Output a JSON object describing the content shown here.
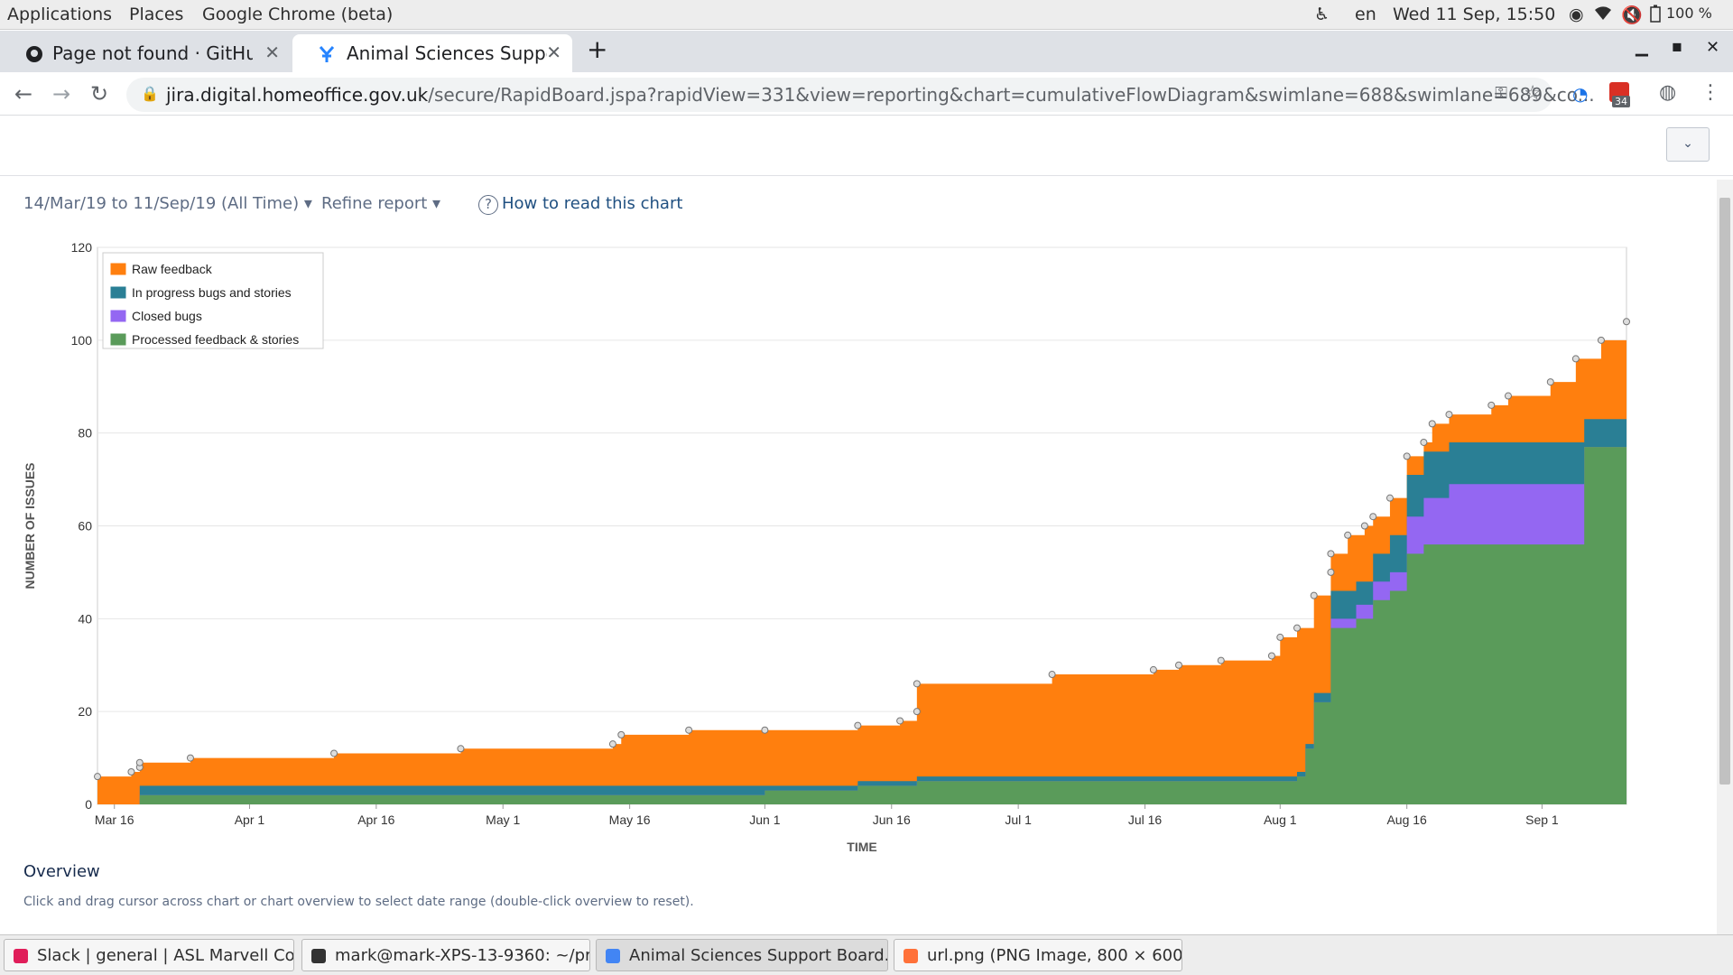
{
  "top_panel": {
    "menus": [
      "Applications",
      "Places",
      "Google Chrome (beta)"
    ],
    "language": "en",
    "clock": "Wed 11 Sep, 15:50",
    "battery": "100 %"
  },
  "tabs": [
    {
      "title": "Page not found · GitHub",
      "active": false,
      "icon": "github-icon"
    },
    {
      "title": "Animal Sciences Support Board",
      "active": true,
      "icon": "jira-icon"
    }
  ],
  "omnibox": {
    "host": "jira.digital.homeoffice.gov.uk",
    "path": "/secure/RapidBoard.jspa?rapidView=331&view=reporting&chart=cumulativeFlowDiagram&swimlane=688&swimlane=689&co..."
  },
  "toolbar": {
    "extension_badge": "34"
  },
  "report": {
    "date_range": "14/Mar/19 to 11/Sep/19 (All Time)",
    "refine": "Refine report",
    "how_to_read": "How to read this chart",
    "overview_title": "Overview",
    "overview_help": "Click and drag cursor across chart or chart overview to select date range (double-click overview to reset)."
  },
  "taskbar": [
    {
      "label": "Slack | general | ASL Marvell Co...",
      "icon": "slack-icon",
      "active": false
    },
    {
      "label": "mark@mark-XPS-13-9360: ~/pr...",
      "icon": "terminal-icon",
      "active": false
    },
    {
      "label": "Animal Sciences Support Board...",
      "icon": "chrome-icon",
      "active": true
    },
    {
      "label": "url.png (PNG Image, 800 × 600...",
      "icon": "firefox-icon",
      "active": false
    }
  ],
  "chart_data": {
    "type": "area",
    "stacked": true,
    "xlabel": "TIME",
    "ylabel": "NUMBER OF ISSUES",
    "ylim": [
      0,
      120
    ],
    "yticks": [
      0,
      20,
      40,
      60,
      80,
      100,
      120
    ],
    "xlim": [
      "2019-03-14",
      "2019-09-11"
    ],
    "xticks": [
      {
        "date": "2019-03-16",
        "label": "Mar 16"
      },
      {
        "date": "2019-04-01",
        "label": "Apr 1"
      },
      {
        "date": "2019-04-16",
        "label": "Apr 16"
      },
      {
        "date": "2019-05-01",
        "label": "May 1"
      },
      {
        "date": "2019-05-16",
        "label": "May 16"
      },
      {
        "date": "2019-06-01",
        "label": "Jun 1"
      },
      {
        "date": "2019-06-16",
        "label": "Jun 16"
      },
      {
        "date": "2019-07-01",
        "label": "Jul 1"
      },
      {
        "date": "2019-07-16",
        "label": "Jul 16"
      },
      {
        "date": "2019-08-01",
        "label": "Aug 1"
      },
      {
        "date": "2019-08-16",
        "label": "Aug 16"
      },
      {
        "date": "2019-09-01",
        "label": "Sep 1"
      }
    ],
    "legend_position": "top-left",
    "grid": true,
    "series": [
      {
        "name": "Raw feedback",
        "color": "#ff7f0e"
      },
      {
        "name": "In progress bugs and stories",
        "color": "#2a7f95"
      },
      {
        "name": "Closed bugs",
        "color": "#9467f2"
      },
      {
        "name": "Processed feedback & stories",
        "color": "#5a9b5a"
      }
    ],
    "cumulative_totals": {
      "x": [
        "2019-03-14",
        "2019-03-18",
        "2019-03-19",
        "2019-03-19",
        "2019-03-25",
        "2019-04-11",
        "2019-04-26",
        "2019-05-14",
        "2019-05-15",
        "2019-05-23",
        "2019-06-01",
        "2019-06-12",
        "2019-06-17",
        "2019-06-19",
        "2019-06-19",
        "2019-07-05",
        "2019-07-17",
        "2019-07-20",
        "2019-07-25",
        "2019-07-31",
        "2019-08-01",
        "2019-08-03",
        "2019-08-05",
        "2019-08-07",
        "2019-08-07",
        "2019-08-09",
        "2019-08-11",
        "2019-08-12",
        "2019-08-14",
        "2019-08-16",
        "2019-08-18",
        "2019-08-19",
        "2019-08-21",
        "2019-08-26",
        "2019-08-28",
        "2019-09-02",
        "2019-09-05",
        "2019-09-08",
        "2019-09-11"
      ],
      "total": [
        6,
        7,
        8,
        9,
        10,
        11,
        12,
        13,
        15,
        16,
        16,
        17,
        18,
        20,
        26,
        28,
        29,
        30,
        31,
        32,
        36,
        38,
        45,
        50,
        54,
        58,
        60,
        62,
        66,
        75,
        78,
        82,
        84,
        86,
        88,
        91,
        96,
        100,
        104
      ],
      "raw_feedback_top_minus_in_progress": []
    },
    "bands": {
      "x": [
        "2019-03-14",
        "2019-03-19",
        "2019-05-23",
        "2019-06-01",
        "2019-06-12",
        "2019-06-19",
        "2019-07-31",
        "2019-08-03",
        "2019-08-04",
        "2019-08-05",
        "2019-08-07",
        "2019-08-10",
        "2019-08-12",
        "2019-08-14",
        "2019-08-16",
        "2019-08-18",
        "2019-08-21",
        "2019-09-03",
        "2019-09-06",
        "2019-09-11"
      ],
      "processed": [
        0,
        2,
        2,
        3,
        4,
        5,
        5,
        6,
        12,
        22,
        38,
        40,
        44,
        46,
        54,
        56,
        56,
        56,
        77,
        77
      ],
      "closed_bugs": [
        0,
        0,
        0,
        0,
        0,
        0,
        0,
        0,
        0,
        0,
        2,
        3,
        4,
        4,
        8,
        10,
        13,
        13,
        0,
        0
      ],
      "in_progress": [
        0,
        2,
        2,
        1,
        1,
        1,
        1,
        1,
        1,
        2,
        6,
        5,
        6,
        8,
        9,
        10,
        9,
        9,
        6,
        8
      ]
    }
  }
}
